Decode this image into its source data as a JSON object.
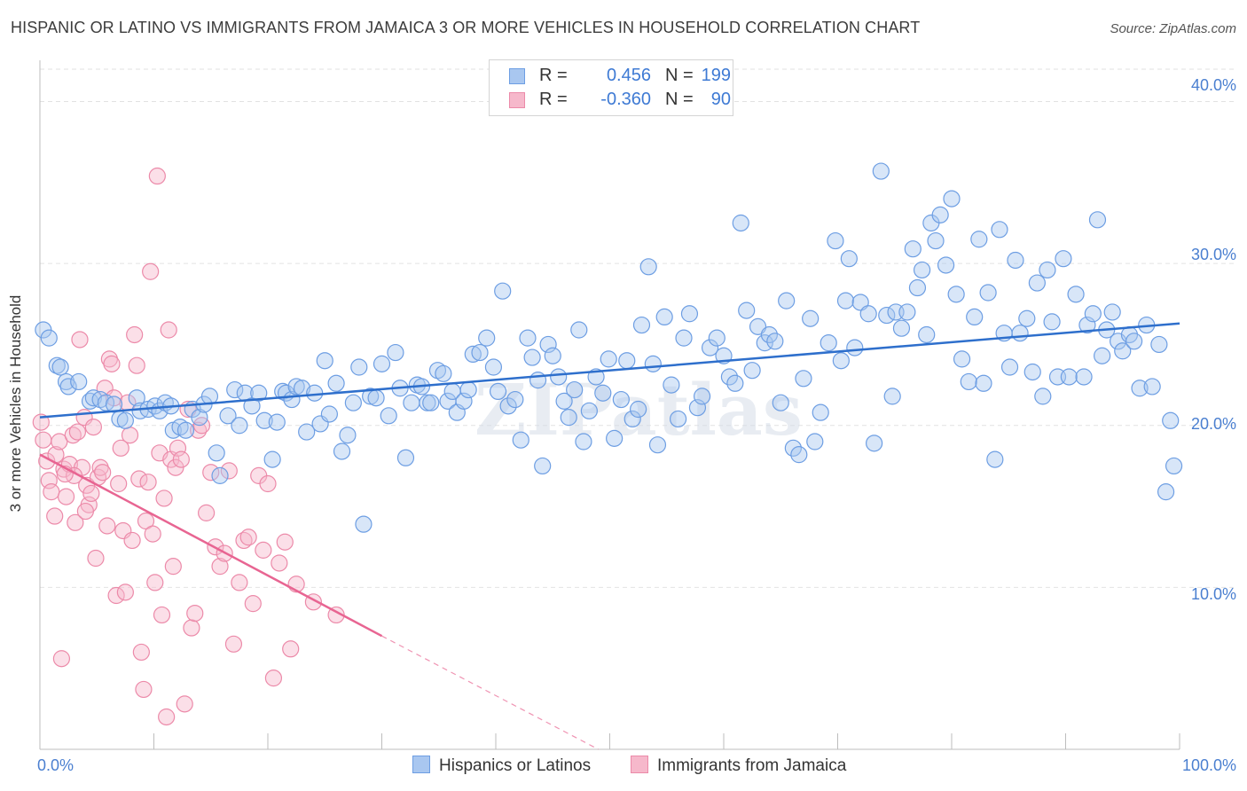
{
  "title": "HISPANIC OR LATINO VS IMMIGRANTS FROM JAMAICA 3 OR MORE VEHICLES IN HOUSEHOLD CORRELATION CHART",
  "source": "Source: ZipAtlas.com",
  "watermark": "ZIPatlas",
  "colors": {
    "blue_fill": "#a9c7f0",
    "blue_edge": "#6d9ee3",
    "blue_line": "#2e6fcc",
    "pink_fill": "#f6b8cb",
    "pink_edge": "#ec8aa9",
    "pink_line": "#e86592",
    "tick_text": "#4a7fd0"
  },
  "legend": {
    "rows": [
      {
        "r_label": "R =",
        "r_value": "0.456",
        "n_label": "N =",
        "n_value": "199",
        "color": "blue"
      },
      {
        "r_label": "R =",
        "r_value": "-0.360",
        "n_label": "N =",
        "n_value": "90",
        "color": "pink"
      }
    ]
  },
  "bottom_legend": [
    "Hispanics or Latinos",
    "Immigrants from Jamaica"
  ],
  "chart_data": {
    "type": "scatter",
    "xlabel": "",
    "ylabel": "3 or more Vehicles in Household",
    "xlim": [
      0,
      100
    ],
    "ylim": [
      0,
      42
    ],
    "x_tick_labels": [
      "0.0%",
      "100.0%"
    ],
    "y_tick_labels": [
      "10.0%",
      "20.0%",
      "30.0%",
      "40.0%"
    ],
    "y_ticks": [
      10,
      20,
      30,
      40
    ],
    "grid": "horizontal dashed",
    "legend_position": "top-center",
    "series": [
      {
        "name": "Hispanics or Latinos",
        "color": "blue",
        "trend": {
          "x": [
            0,
            100
          ],
          "y": [
            20.5,
            26.3
          ]
        },
        "points": [
          [
            0.3,
            25.9
          ],
          [
            0.8,
            25.4
          ],
          [
            1.5,
            23.7
          ],
          [
            1.8,
            23.6
          ],
          [
            2.3,
            22.7
          ],
          [
            2.5,
            22.4
          ],
          [
            3.4,
            22.7
          ],
          [
            4.4,
            21.5
          ],
          [
            4.7,
            21.7
          ],
          [
            5.3,
            21.6
          ],
          [
            5.8,
            21.4
          ],
          [
            6.5,
            21.3
          ],
          [
            7.0,
            20.4
          ],
          [
            7.5,
            20.3
          ],
          [
            8.5,
            21.7
          ],
          [
            8.8,
            20.9
          ],
          [
            9.5,
            21.0
          ],
          [
            10.1,
            21.2
          ],
          [
            10.5,
            20.9
          ],
          [
            11.0,
            21.4
          ],
          [
            11.5,
            21.2
          ],
          [
            11.7,
            19.7
          ],
          [
            12.3,
            19.9
          ],
          [
            12.8,
            19.7
          ],
          [
            13.4,
            21.0
          ],
          [
            14.0,
            20.5
          ],
          [
            14.4,
            21.3
          ],
          [
            14.9,
            21.8
          ],
          [
            15.5,
            18.3
          ],
          [
            15.8,
            16.9
          ],
          [
            16.5,
            20.6
          ],
          [
            17.1,
            22.2
          ],
          [
            17.5,
            20.0
          ],
          [
            18.0,
            22.0
          ],
          [
            18.6,
            21.2
          ],
          [
            19.2,
            22.0
          ],
          [
            19.7,
            20.3
          ],
          [
            20.4,
            17.9
          ],
          [
            20.8,
            20.2
          ],
          [
            21.3,
            22.1
          ],
          [
            21.6,
            22.0
          ],
          [
            22.1,
            21.6
          ],
          [
            22.5,
            22.4
          ],
          [
            23.0,
            22.3
          ],
          [
            23.4,
            19.6
          ],
          [
            24.1,
            22.0
          ],
          [
            24.6,
            20.1
          ],
          [
            25.0,
            24.0
          ],
          [
            25.4,
            20.7
          ],
          [
            26.0,
            22.6
          ],
          [
            26.5,
            18.4
          ],
          [
            27.0,
            19.4
          ],
          [
            27.5,
            21.4
          ],
          [
            28.0,
            23.6
          ],
          [
            28.4,
            13.9
          ],
          [
            29.0,
            21.8
          ],
          [
            29.5,
            21.7
          ],
          [
            30.0,
            23.8
          ],
          [
            30.6,
            20.6
          ],
          [
            31.2,
            24.5
          ],
          [
            31.6,
            22.3
          ],
          [
            32.1,
            18.0
          ],
          [
            32.6,
            21.4
          ],
          [
            33.1,
            22.5
          ],
          [
            33.5,
            22.4
          ],
          [
            34.0,
            21.4
          ],
          [
            34.3,
            21.4
          ],
          [
            34.9,
            23.4
          ],
          [
            35.4,
            23.2
          ],
          [
            35.8,
            21.5
          ],
          [
            36.2,
            22.1
          ],
          [
            36.6,
            20.8
          ],
          [
            37.2,
            21.5
          ],
          [
            37.6,
            22.2
          ],
          [
            38.0,
            24.4
          ],
          [
            38.6,
            24.5
          ],
          [
            39.2,
            25.4
          ],
          [
            39.8,
            23.6
          ],
          [
            40.2,
            22.1
          ],
          [
            40.6,
            28.3
          ],
          [
            41.1,
            21.2
          ],
          [
            41.7,
            21.6
          ],
          [
            42.2,
            19.1
          ],
          [
            42.8,
            25.4
          ],
          [
            43.2,
            24.2
          ],
          [
            43.7,
            22.8
          ],
          [
            44.1,
            17.5
          ],
          [
            44.6,
            25.0
          ],
          [
            45.0,
            24.3
          ],
          [
            45.5,
            23.0
          ],
          [
            46.0,
            21.5
          ],
          [
            46.4,
            20.5
          ],
          [
            46.9,
            22.2
          ],
          [
            47.3,
            25.9
          ],
          [
            47.7,
            19.0
          ],
          [
            48.2,
            20.9
          ],
          [
            48.8,
            23.0
          ],
          [
            49.4,
            22.0
          ],
          [
            49.9,
            24.1
          ],
          [
            50.4,
            19.2
          ],
          [
            51.0,
            21.6
          ],
          [
            51.5,
            24.0
          ],
          [
            52.0,
            20.4
          ],
          [
            52.5,
            21.0
          ],
          [
            52.8,
            26.2
          ],
          [
            53.4,
            29.8
          ],
          [
            53.8,
            23.8
          ],
          [
            54.2,
            18.8
          ],
          [
            54.8,
            26.7
          ],
          [
            55.4,
            22.5
          ],
          [
            56.0,
            20.4
          ],
          [
            56.5,
            25.4
          ],
          [
            57.0,
            26.9
          ],
          [
            57.7,
            21.1
          ],
          [
            58.1,
            21.8
          ],
          [
            58.8,
            24.8
          ],
          [
            59.4,
            25.4
          ],
          [
            60.0,
            24.3
          ],
          [
            60.5,
            23.0
          ],
          [
            61.0,
            22.6
          ],
          [
            61.5,
            32.5
          ],
          [
            62.0,
            27.1
          ],
          [
            62.5,
            23.4
          ],
          [
            63.0,
            26.1
          ],
          [
            63.6,
            25.1
          ],
          [
            64.0,
            25.6
          ],
          [
            64.5,
            25.2
          ],
          [
            65.0,
            21.4
          ],
          [
            65.5,
            27.7
          ],
          [
            66.1,
            18.6
          ],
          [
            66.6,
            18.2
          ],
          [
            67.0,
            22.9
          ],
          [
            67.6,
            26.6
          ],
          [
            68.0,
            19.0
          ],
          [
            68.5,
            20.8
          ],
          [
            69.2,
            25.1
          ],
          [
            69.8,
            31.4
          ],
          [
            70.3,
            24.0
          ],
          [
            70.7,
            27.7
          ],
          [
            71.0,
            30.3
          ],
          [
            71.5,
            24.8
          ],
          [
            72.0,
            27.6
          ],
          [
            72.7,
            26.9
          ],
          [
            73.2,
            18.9
          ],
          [
            73.8,
            35.7
          ],
          [
            74.3,
            26.8
          ],
          [
            74.8,
            21.8
          ],
          [
            75.1,
            27.0
          ],
          [
            75.6,
            26.0
          ],
          [
            76.1,
            27.0
          ],
          [
            76.6,
            30.9
          ],
          [
            77.0,
            28.5
          ],
          [
            77.4,
            29.6
          ],
          [
            77.8,
            25.6
          ],
          [
            78.2,
            32.5
          ],
          [
            78.6,
            31.4
          ],
          [
            79.0,
            33.0
          ],
          [
            79.5,
            29.9
          ],
          [
            80.0,
            34.0
          ],
          [
            80.4,
            28.1
          ],
          [
            80.9,
            24.1
          ],
          [
            81.5,
            22.7
          ],
          [
            82.0,
            26.7
          ],
          [
            82.4,
            31.5
          ],
          [
            82.8,
            22.6
          ],
          [
            83.2,
            28.2
          ],
          [
            83.8,
            17.9
          ],
          [
            84.2,
            32.1
          ],
          [
            84.6,
            25.7
          ],
          [
            85.1,
            23.6
          ],
          [
            85.6,
            30.2
          ],
          [
            86.0,
            25.7
          ],
          [
            86.6,
            26.6
          ],
          [
            87.1,
            23.3
          ],
          [
            87.5,
            28.8
          ],
          [
            88.0,
            21.8
          ],
          [
            88.4,
            29.6
          ],
          [
            88.8,
            26.4
          ],
          [
            89.3,
            23.0
          ],
          [
            89.8,
            30.3
          ],
          [
            90.3,
            23.0
          ],
          [
            90.9,
            28.1
          ],
          [
            91.6,
            23.0
          ],
          [
            91.9,
            26.2
          ],
          [
            92.4,
            26.9
          ],
          [
            92.8,
            32.7
          ],
          [
            93.2,
            24.3
          ],
          [
            93.6,
            25.9
          ],
          [
            94.1,
            27.0
          ],
          [
            94.6,
            25.2
          ],
          [
            95.0,
            24.6
          ],
          [
            95.6,
            25.6
          ],
          [
            96.0,
            25.2
          ],
          [
            96.5,
            22.3
          ],
          [
            97.1,
            26.2
          ],
          [
            97.6,
            22.4
          ],
          [
            98.2,
            25.0
          ],
          [
            98.8,
            15.9
          ],
          [
            99.2,
            20.3
          ],
          [
            99.5,
            17.5
          ]
        ]
      },
      {
        "name": "Immigrants from Jamaica",
        "color": "pink",
        "trend": {
          "x": [
            0,
            30
          ],
          "y": [
            18.2,
            7.0
          ],
          "dashed_to": {
            "x": 49,
            "y": 0
          }
        },
        "points": [
          [
            0.3,
            19.1
          ],
          [
            0.6,
            17.8
          ],
          [
            0.8,
            16.6
          ],
          [
            1.0,
            15.9
          ],
          [
            1.3,
            14.4
          ],
          [
            1.4,
            18.2
          ],
          [
            1.7,
            19.0
          ],
          [
            1.9,
            5.6
          ],
          [
            2.1,
            17.3
          ],
          [
            2.3,
            15.6
          ],
          [
            2.6,
            17.6
          ],
          [
            2.9,
            19.4
          ],
          [
            3.1,
            14.0
          ],
          [
            3.3,
            19.6
          ],
          [
            3.5,
            25.3
          ],
          [
            3.7,
            17.4
          ],
          [
            3.9,
            20.5
          ],
          [
            4.1,
            16.3
          ],
          [
            4.3,
            15.1
          ],
          [
            4.5,
            15.8
          ],
          [
            4.7,
            19.9
          ],
          [
            4.9,
            11.8
          ],
          [
            5.1,
            16.8
          ],
          [
            5.3,
            17.4
          ],
          [
            5.5,
            17.1
          ],
          [
            5.7,
            22.3
          ],
          [
            5.9,
            13.8
          ],
          [
            6.1,
            24.1
          ],
          [
            6.3,
            23.8
          ],
          [
            6.5,
            21.7
          ],
          [
            6.7,
            9.5
          ],
          [
            6.9,
            16.4
          ],
          [
            7.1,
            18.6
          ],
          [
            7.3,
            13.5
          ],
          [
            7.5,
            9.7
          ],
          [
            7.7,
            21.4
          ],
          [
            7.9,
            19.4
          ],
          [
            8.1,
            12.9
          ],
          [
            8.3,
            25.6
          ],
          [
            8.5,
            23.7
          ],
          [
            8.7,
            16.7
          ],
          [
            8.9,
            6.0
          ],
          [
            9.1,
            3.7
          ],
          [
            9.3,
            14.1
          ],
          [
            9.5,
            16.5
          ],
          [
            9.7,
            29.5
          ],
          [
            9.9,
            13.3
          ],
          [
            10.1,
            10.3
          ],
          [
            10.3,
            35.4
          ],
          [
            10.5,
            18.3
          ],
          [
            10.7,
            8.3
          ],
          [
            10.9,
            15.5
          ],
          [
            11.1,
            2.0
          ],
          [
            11.3,
            25.9
          ],
          [
            11.5,
            17.9
          ],
          [
            11.7,
            11.3
          ],
          [
            11.9,
            17.4
          ],
          [
            12.1,
            18.6
          ],
          [
            12.4,
            17.9
          ],
          [
            12.7,
            2.8
          ],
          [
            13.0,
            21.0
          ],
          [
            13.3,
            7.5
          ],
          [
            13.6,
            8.4
          ],
          [
            13.9,
            19.7
          ],
          [
            14.2,
            20.0
          ],
          [
            14.6,
            14.6
          ],
          [
            15.0,
            17.1
          ],
          [
            15.4,
            12.5
          ],
          [
            15.8,
            11.3
          ],
          [
            16.2,
            12.1
          ],
          [
            16.6,
            17.2
          ],
          [
            17.0,
            6.5
          ],
          [
            17.5,
            10.3
          ],
          [
            17.9,
            12.9
          ],
          [
            18.3,
            13.1
          ],
          [
            18.7,
            9.0
          ],
          [
            19.2,
            16.9
          ],
          [
            19.6,
            12.3
          ],
          [
            20.0,
            16.4
          ],
          [
            20.5,
            4.4
          ],
          [
            21.0,
            11.5
          ],
          [
            21.5,
            12.8
          ],
          [
            22.0,
            6.2
          ],
          [
            22.5,
            10.2
          ],
          [
            24.0,
            9.1
          ],
          [
            26.0,
            8.3
          ],
          [
            3.0,
            16.9
          ],
          [
            4.0,
            14.7
          ],
          [
            2.2,
            17.0
          ],
          [
            0.1,
            20.2
          ]
        ]
      }
    ]
  }
}
